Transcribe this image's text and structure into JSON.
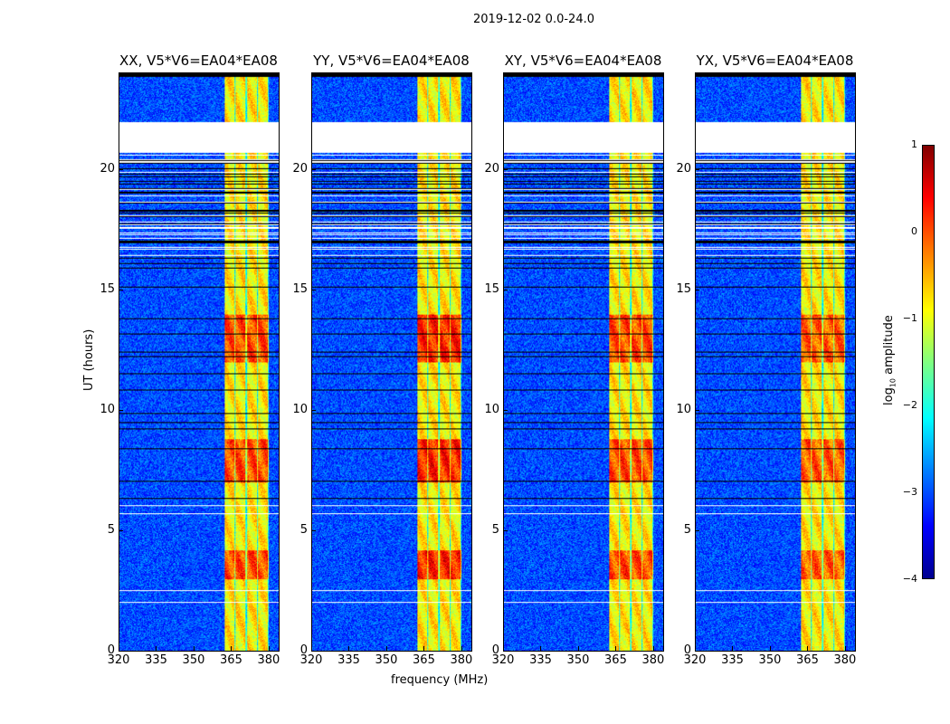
{
  "suptitle": "2019-12-02 0.0-24.0",
  "chart_data": {
    "type": "heatmap",
    "title": "2019-12-02 0.0-24.0",
    "xlabel": "frequency (MHz)",
    "ylabel": "UT (hours)",
    "xlim": [
      320,
      384
    ],
    "ylim": [
      0,
      24
    ],
    "xticks": [
      "320",
      "335",
      "350",
      "365",
      "380"
    ],
    "xtick_values": [
      320,
      335,
      350,
      365,
      380
    ],
    "yticks": [
      "0",
      "5",
      "10",
      "15",
      "20"
    ],
    "ytick_values": [
      0,
      5,
      10,
      15,
      20
    ],
    "panels": [
      {
        "title": "XX, V5*V6=EA04*EA08",
        "band_peak": 0.6
      },
      {
        "title": "YY, V5*V6=EA04*EA08",
        "band_peak": 0.8
      },
      {
        "title": "XY, V5*V6=EA04*EA08",
        "band_peak": 0.6
      },
      {
        "title": "YX, V5*V6=EA04*EA08",
        "band_peak": 0.5
      }
    ],
    "features": {
      "background_log_amplitude": -3.0,
      "band_mhz": [
        362,
        380
      ],
      "band_log_amplitude": -0.8,
      "hot_hours": [
        [
          7.0,
          8.8
        ],
        [
          12.0,
          14.0
        ],
        [
          3.0,
          4.2
        ]
      ],
      "flagged_hours": [
        [
          20.7,
          22.0
        ]
      ]
    },
    "colorbar": {
      "label": "log10 amplitude",
      "label_main": "log",
      "label_sub": "10",
      "label_rest": " amplitude",
      "range": [
        -4,
        1
      ],
      "ticks": [
        "1",
        "0",
        "−1",
        "−2",
        "−3",
        "−4"
      ],
      "tick_values": [
        1,
        0,
        -1,
        -2,
        -3,
        -4
      ],
      "colormap": "jet"
    }
  }
}
